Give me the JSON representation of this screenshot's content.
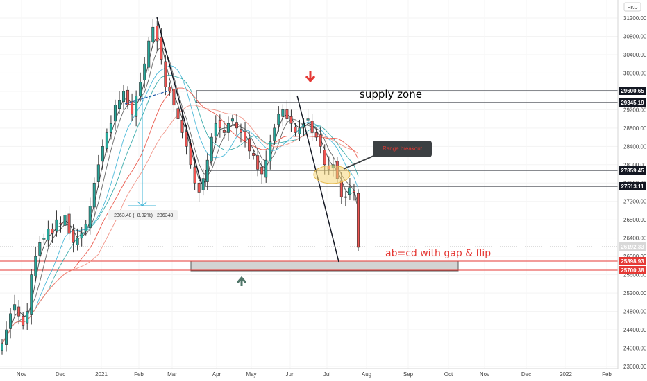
{
  "currency": "HKD",
  "chart_data": {
    "type": "candlestick",
    "y_ticks": [
      23600,
      24000,
      24400,
      24800,
      25200,
      25600,
      26000,
      26400,
      26800,
      27200,
      27600,
      28000,
      28400,
      28800,
      29200,
      29600,
      30000,
      30400,
      30800,
      31200
    ],
    "x_ticks": [
      "Nov",
      "Dec",
      "2021",
      "Feb",
      "Mar",
      "Apr",
      "May",
      "Jun",
      "Jul",
      "Aug",
      "Sep",
      "Oct",
      "Nov",
      "Dec",
      "2022",
      "Feb"
    ],
    "ylim": [
      23550,
      31450
    ],
    "series_close": [
      24100,
      24400,
      24750,
      24950,
      24700,
      24500,
      24800,
      25600,
      26000,
      26300,
      26400,
      26600,
      26500,
      26800,
      26700,
      26900,
      26500,
      26300,
      26400,
      26500,
      26700,
      27100,
      27600,
      28000,
      28400,
      28700,
      28900,
      29300,
      29400,
      29600,
      29300,
      29100,
      29500,
      29800,
      30200,
      30700,
      31000,
      30700,
      30300,
      29700,
      29600,
      29300,
      29000,
      28700,
      28400,
      28000,
      27600,
      27400,
      27700,
      28100,
      28600,
      28900,
      28800,
      28700,
      28900,
      29000,
      28800,
      28700,
      28500,
      28300,
      28200,
      27900,
      27800,
      28100,
      28500,
      28800,
      29100,
      29200,
      29000,
      28900,
      28700,
      28800,
      28900,
      29000,
      28700,
      28600,
      28400,
      28000,
      27900,
      28000,
      27700,
      27300,
      27300,
      27500,
      27400,
      26200
    ],
    "price_labels": [
      {
        "value": "29600.65",
        "color": "#131722"
      },
      {
        "value": "29345.19",
        "color": "#131722"
      },
      {
        "value": "27859.45",
        "color": "#131722"
      },
      {
        "value": "27513.11",
        "color": "#131722"
      },
      {
        "value": "26192.33",
        "color": "#d8d8d8"
      },
      {
        "value": "25898.93",
        "color": "#e53935"
      },
      {
        "value": "25700.38",
        "color": "#e53935"
      }
    ],
    "measure_label": "−2363.48 (−8.02%) −236348",
    "annotations": {
      "supply_zone": "supply zone",
      "range_breakout": "Range breakout",
      "abcd": "ab=cd with gap & flip"
    },
    "colors": {
      "up": "#26a69a",
      "down": "#ef5350",
      "candle": "#333333",
      "supply_line": "#131722",
      "demand_line": "#e53935",
      "arrow_down": "#e53935",
      "arrow_up": "#4f7568",
      "ma_red": "#e84a3c",
      "ma_blue": "#3bb3d6",
      "ma_dark": "#333333"
    }
  }
}
